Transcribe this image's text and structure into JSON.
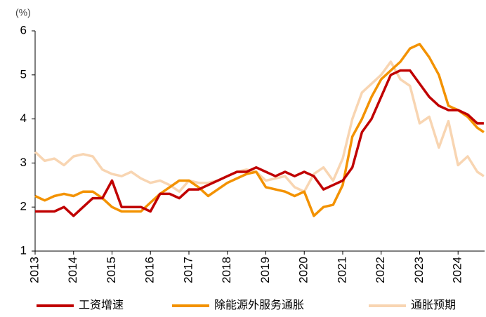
{
  "chart_data": {
    "type": "line",
    "y_label": "(%)",
    "x": [
      2013.0,
      2013.25,
      2013.5,
      2013.75,
      2014.0,
      2014.25,
      2014.5,
      2014.75,
      2015.0,
      2015.25,
      2015.5,
      2015.75,
      2016.0,
      2016.25,
      2016.5,
      2016.75,
      2017.0,
      2017.25,
      2017.5,
      2017.75,
      2018.0,
      2018.25,
      2018.5,
      2018.75,
      2019.0,
      2019.25,
      2019.5,
      2019.75,
      2020.0,
      2020.25,
      2020.5,
      2020.75,
      2021.0,
      2021.25,
      2021.5,
      2021.75,
      2022.0,
      2022.25,
      2022.5,
      2022.75,
      2023.0,
      2023.25,
      2023.5,
      2023.75,
      2024.0,
      2024.25,
      2024.5,
      2024.67
    ],
    "series": [
      {
        "name": "工资增速",
        "color": "#c00000",
        "values": [
          1.9,
          1.9,
          1.9,
          2.0,
          1.8,
          2.0,
          2.2,
          2.2,
          2.6,
          2.0,
          2.0,
          2.0,
          1.9,
          2.3,
          2.3,
          2.2,
          2.4,
          2.4,
          2.5,
          2.6,
          2.7,
          2.8,
          2.8,
          2.9,
          2.8,
          2.7,
          2.8,
          2.7,
          2.8,
          2.7,
          2.4,
          2.5,
          2.6,
          2.9,
          3.7,
          4.0,
          4.5,
          5.0,
          5.1,
          5.1,
          4.8,
          4.5,
          4.3,
          4.2,
          4.2,
          4.1,
          3.9,
          3.9
        ]
      },
      {
        "name": "除能源外服务通胀",
        "color": "#f39200",
        "values": [
          2.25,
          2.15,
          2.25,
          2.3,
          2.25,
          2.35,
          2.35,
          2.2,
          2.0,
          1.9,
          1.9,
          1.9,
          2.1,
          2.3,
          2.45,
          2.6,
          2.6,
          2.45,
          2.25,
          2.4,
          2.55,
          2.65,
          2.75,
          2.8,
          2.45,
          2.4,
          2.35,
          2.25,
          2.35,
          1.8,
          2.0,
          2.05,
          2.5,
          3.6,
          4.0,
          4.5,
          4.9,
          5.1,
          5.3,
          5.6,
          5.7,
          5.4,
          5.0,
          4.3,
          4.2,
          4.05,
          3.8,
          3.7
        ]
      },
      {
        "name": "通胀预期",
        "color": "#f8d5b2",
        "values": [
          3.25,
          3.05,
          3.1,
          2.95,
          3.15,
          3.2,
          3.15,
          2.85,
          2.75,
          2.7,
          2.8,
          2.65,
          2.55,
          2.6,
          2.5,
          2.35,
          2.6,
          2.55,
          2.55,
          2.6,
          2.7,
          2.8,
          2.85,
          2.8,
          2.6,
          2.65,
          2.7,
          2.45,
          2.35,
          2.75,
          2.9,
          2.6,
          3.1,
          4.0,
          4.6,
          4.8,
          5.0,
          5.3,
          4.9,
          4.75,
          3.9,
          4.05,
          3.35,
          3.95,
          2.95,
          3.15,
          2.8,
          2.7
        ]
      }
    ],
    "xlim": [
      2013,
      2024.69
    ],
    "xticks": [
      2013,
      2014,
      2015,
      2016,
      2017,
      2018,
      2019,
      2020,
      2021,
      2022,
      2023,
      2024
    ],
    "ylim": [
      1,
      6
    ],
    "yticks": [
      1,
      2,
      3,
      4,
      5,
      6
    ],
    "grid": false
  }
}
